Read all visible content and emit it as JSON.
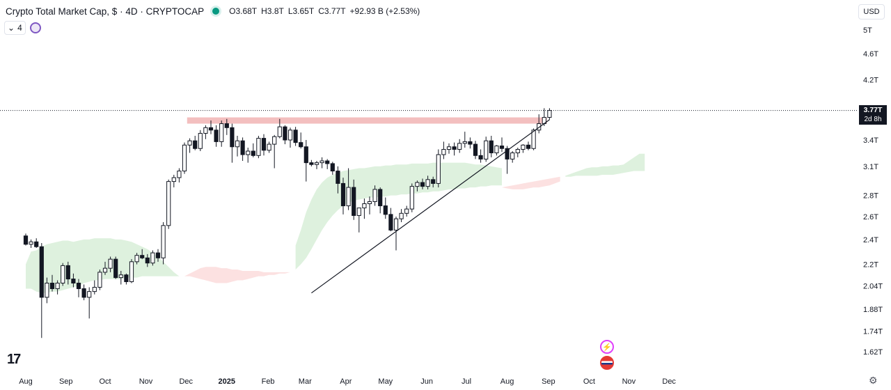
{
  "header": {
    "title": "Crypto Total Market Cap, $ · 4D · CRYPTOCAP",
    "open": "O3.68T",
    "high": "H3.8T",
    "low": "L3.65T",
    "close": "C3.77T",
    "change": "+92.93 B (+2.53%)"
  },
  "indicator_count": "4",
  "currency": "USD",
  "price_tag": {
    "value": "3.77T",
    "countdown": "2d 8h"
  },
  "tv_logo": "17",
  "colors": {
    "up": "#131722",
    "down": "#131722",
    "resistance": "#f2b8b8",
    "cloud_bull": "#d8eed8",
    "cloud_bear": "#fbdcdc",
    "trendline": "#131722"
  },
  "chart_data": {
    "type": "candlestick",
    "title": "Crypto Total Market Cap, $ · 4D · CRYPTOCAP",
    "yscale": "log",
    "ylim": [
      1.55,
      5.3
    ],
    "y_ticks": [
      {
        "v": 5.0,
        "label": "5T"
      },
      {
        "v": 4.6,
        "label": "4.6T"
      },
      {
        "v": 4.2,
        "label": "4.2T"
      },
      {
        "v": 3.4,
        "label": "3.4T"
      },
      {
        "v": 3.1,
        "label": "3.1T"
      },
      {
        "v": 2.8,
        "label": "2.8T"
      },
      {
        "v": 2.6,
        "label": "2.6T"
      },
      {
        "v": 2.4,
        "label": "2.4T"
      },
      {
        "v": 2.2,
        "label": "2.2T"
      },
      {
        "v": 2.04,
        "label": "2.04T"
      },
      {
        "v": 1.88,
        "label": "1.88T"
      },
      {
        "v": 1.74,
        "label": "1.74T"
      },
      {
        "v": 1.62,
        "label": "1.62T"
      }
    ],
    "x_ticks": [
      "Aug",
      "Sep",
      "Oct",
      "Nov",
      "Dec",
      "2025",
      "Feb",
      "Mar",
      "Apr",
      "May",
      "Jun",
      "Jul",
      "Aug",
      "Sep",
      "Oct",
      "Nov",
      "Dec"
    ],
    "x_tick_index": [
      0,
      7.6,
      15,
      22.7,
      30.3,
      38,
      45.8,
      52.8,
      60.5,
      68,
      75.8,
      83.3,
      91,
      98.8,
      106.5,
      114,
      121.6
    ],
    "resistance_zone": {
      "i0": 30.5,
      "i1": 98.5,
      "low": 3.6,
      "high": 3.68
    },
    "trendline": {
      "i0": 54,
      "v0": 1.99,
      "i1": 99,
      "v1": 3.65
    },
    "cloud_bull": [
      {
        "i0": 0,
        "i1": 29,
        "upper": [
          2.2,
          2.3,
          2.31,
          2.34,
          2.36,
          2.37,
          2.38,
          2.39,
          2.39,
          2.38,
          2.39,
          2.4,
          2.4,
          2.41,
          2.41,
          2.41,
          2.41,
          2.4,
          2.4,
          2.39,
          2.38,
          2.36,
          2.34,
          2.32,
          2.29,
          2.26,
          2.22,
          2.18,
          2.14,
          2.11
        ],
        "lower": [
          2.02,
          2.02,
          2.0,
          1.99,
          1.99,
          2.0,
          2.0,
          2.01,
          2.02,
          2.03,
          2.04,
          2.06,
          2.07,
          2.08,
          2.08,
          2.09,
          2.09,
          2.09,
          2.09,
          2.1,
          2.1,
          2.1,
          2.11,
          2.11,
          2.11,
          2.11,
          2.11,
          2.11,
          2.11,
          2.11
        ]
      },
      {
        "i0": 51,
        "i1": 90,
        "upper": [
          2.35,
          2.48,
          2.64,
          2.76,
          2.86,
          2.93,
          2.98,
          3.01,
          3.03,
          3.05,
          3.06,
          3.07,
          3.08,
          3.08,
          3.09,
          3.1,
          3.1,
          3.11,
          3.11,
          3.12,
          3.12,
          3.12,
          3.13,
          3.13,
          3.13,
          3.13,
          3.14,
          3.14,
          3.14,
          3.14,
          3.14,
          3.14,
          3.14,
          3.13,
          3.12,
          3.12,
          3.11,
          3.1,
          3.09,
          3.08
        ],
        "lower": [
          2.16,
          2.2,
          2.25,
          2.32,
          2.4,
          2.48,
          2.55,
          2.61,
          2.66,
          2.7,
          2.73,
          2.75,
          2.76,
          2.77,
          2.78,
          2.78,
          2.79,
          2.79,
          2.8,
          2.8,
          2.81,
          2.81,
          2.82,
          2.82,
          2.83,
          2.83,
          2.84,
          2.84,
          2.85,
          2.86,
          2.86,
          2.87,
          2.87,
          2.88,
          2.88,
          2.89,
          2.89,
          2.9,
          2.9,
          2.9
        ]
      },
      {
        "i0": 102,
        "i1": 117,
        "upper": [
          3.0,
          3.02,
          3.04,
          3.06,
          3.08,
          3.09,
          3.09,
          3.1,
          3.1,
          3.11,
          3.11,
          3.12,
          3.16,
          3.2,
          3.24,
          3.24
        ],
        "lower": [
          2.99,
          2.99,
          3.0,
          3.0,
          3.0,
          3.0,
          3.0,
          3.01,
          3.01,
          3.01,
          3.02,
          3.03,
          3.04,
          3.05,
          3.05,
          3.05
        ]
      }
    ],
    "cloud_bear": [
      {
        "i0": 30,
        "i1": 50,
        "upper": [
          2.11,
          2.13,
          2.15,
          2.17,
          2.18,
          2.18,
          2.18,
          2.17,
          2.17,
          2.16,
          2.16,
          2.15,
          2.15,
          2.15,
          2.15,
          2.14,
          2.14,
          2.14,
          2.14,
          2.14,
          2.14
        ],
        "lower": [
          2.11,
          2.11,
          2.1,
          2.09,
          2.08,
          2.07,
          2.06,
          2.06,
          2.06,
          2.07,
          2.08,
          2.08,
          2.09,
          2.1,
          2.11,
          2.11,
          2.12,
          2.12,
          2.13,
          2.13,
          2.14
        ]
      },
      {
        "i0": 90,
        "i1": 101,
        "upper": [
          2.88,
          2.89,
          2.9,
          2.91,
          2.92,
          2.93,
          2.94,
          2.95,
          2.96,
          2.97,
          2.98,
          2.99
        ],
        "lower": [
          2.88,
          2.87,
          2.86,
          2.86,
          2.86,
          2.87,
          2.88,
          2.88,
          2.89,
          2.9,
          2.92,
          2.94
        ]
      }
    ],
    "candles": [
      [
        2.43,
        2.45,
        2.35,
        2.36
      ],
      [
        2.36,
        2.4,
        2.33,
        2.38
      ],
      [
        2.38,
        2.41,
        2.33,
        2.34
      ],
      [
        2.34,
        2.37,
        1.7,
        1.96
      ],
      [
        1.96,
        2.1,
        1.92,
        2.06
      ],
      [
        2.06,
        2.12,
        2.0,
        2.02
      ],
      [
        2.02,
        2.08,
        1.98,
        2.06
      ],
      [
        2.06,
        2.21,
        2.04,
        2.19
      ],
      [
        2.19,
        2.22,
        2.05,
        2.09
      ],
      [
        2.09,
        2.13,
        2.03,
        2.06
      ],
      [
        2.06,
        2.09,
        1.96,
        2.02
      ],
      [
        2.02,
        2.05,
        1.94,
        1.96
      ],
      [
        1.96,
        2.03,
        1.82,
        2.0
      ],
      [
        2.0,
        2.08,
        1.98,
        2.03
      ],
      [
        2.03,
        2.16,
        2.01,
        2.14
      ],
      [
        2.14,
        2.22,
        2.12,
        2.17
      ],
      [
        2.17,
        2.26,
        2.14,
        2.24
      ],
      [
        2.24,
        2.26,
        2.09,
        2.1
      ],
      [
        2.1,
        2.15,
        2.05,
        2.12
      ],
      [
        2.12,
        2.13,
        2.05,
        2.07
      ],
      [
        2.07,
        2.24,
        2.06,
        2.22
      ],
      [
        2.22,
        2.29,
        2.2,
        2.27
      ],
      [
        2.27,
        2.32,
        2.24,
        2.25
      ],
      [
        2.25,
        2.28,
        2.18,
        2.21
      ],
      [
        2.21,
        2.31,
        2.19,
        2.29
      ],
      [
        2.29,
        2.32,
        2.22,
        2.25
      ],
      [
        2.25,
        2.55,
        2.2,
        2.52
      ],
      [
        2.52,
        2.96,
        2.49,
        2.94
      ],
      [
        2.94,
        3.01,
        2.88,
        2.98
      ],
      [
        2.98,
        3.08,
        2.93,
        3.05
      ],
      [
        3.05,
        3.37,
        3.02,
        3.34
      ],
      [
        3.34,
        3.42,
        3.25,
        3.39
      ],
      [
        3.39,
        3.45,
        3.28,
        3.3
      ],
      [
        3.3,
        3.52,
        3.27,
        3.48
      ],
      [
        3.48,
        3.58,
        3.41,
        3.55
      ],
      [
        3.55,
        3.64,
        3.47,
        3.52
      ],
      [
        3.52,
        3.58,
        3.32,
        3.38
      ],
      [
        3.38,
        3.64,
        3.32,
        3.6
      ],
      [
        3.6,
        3.66,
        3.46,
        3.55
      ],
      [
        3.55,
        3.6,
        3.14,
        3.32
      ],
      [
        3.32,
        3.45,
        3.21,
        3.39
      ],
      [
        3.39,
        3.43,
        3.16,
        3.23
      ],
      [
        3.23,
        3.31,
        3.14,
        3.27
      ],
      [
        3.27,
        3.36,
        3.2,
        3.22
      ],
      [
        3.22,
        3.45,
        3.19,
        3.42
      ],
      [
        3.42,
        3.47,
        3.22,
        3.28
      ],
      [
        3.28,
        3.38,
        3.25,
        3.35
      ],
      [
        3.35,
        3.46,
        3.08,
        3.44
      ],
      [
        3.44,
        3.66,
        3.42,
        3.56
      ],
      [
        3.56,
        3.58,
        3.35,
        3.4
      ],
      [
        3.4,
        3.55,
        3.31,
        3.52
      ],
      [
        3.52,
        3.56,
        3.33,
        3.37
      ],
      [
        3.37,
        3.49,
        3.3,
        3.32
      ],
      [
        3.32,
        3.4,
        2.94,
        3.14
      ],
      [
        3.14,
        3.17,
        3.1,
        3.12
      ],
      [
        3.12,
        3.16,
        3.07,
        3.14
      ],
      [
        3.14,
        3.2,
        3.08,
        3.16
      ],
      [
        3.16,
        3.18,
        3.07,
        3.13
      ],
      [
        3.13,
        3.15,
        3.01,
        3.05
      ],
      [
        3.05,
        3.1,
        2.82,
        2.92
      ],
      [
        2.92,
        2.98,
        2.62,
        2.7
      ],
      [
        2.7,
        3.08,
        2.66,
        2.88
      ],
      [
        2.88,
        2.96,
        2.57,
        2.61
      ],
      [
        2.61,
        2.66,
        2.46,
        2.68
      ],
      [
        2.68,
        2.77,
        2.58,
        2.72
      ],
      [
        2.72,
        2.79,
        2.62,
        2.74
      ],
      [
        2.74,
        2.9,
        2.7,
        2.86
      ],
      [
        2.86,
        2.88,
        2.63,
        2.7
      ],
      [
        2.7,
        2.78,
        2.58,
        2.62
      ],
      [
        2.62,
        2.68,
        2.47,
        2.48
      ],
      [
        2.48,
        2.6,
        2.31,
        2.58
      ],
      [
        2.58,
        2.67,
        2.55,
        2.63
      ],
      [
        2.63,
        2.7,
        2.6,
        2.67
      ],
      [
        2.67,
        2.92,
        2.64,
        2.89
      ],
      [
        2.89,
        2.95,
        2.84,
        2.93
      ],
      [
        2.93,
        2.97,
        2.86,
        2.89
      ],
      [
        2.89,
        3.0,
        2.86,
        2.96
      ],
      [
        2.96,
        2.99,
        2.88,
        2.92
      ],
      [
        2.92,
        3.29,
        2.88,
        3.23
      ],
      [
        3.23,
        3.38,
        3.18,
        3.29
      ],
      [
        3.29,
        3.36,
        3.24,
        3.32
      ],
      [
        3.32,
        3.37,
        3.22,
        3.29
      ],
      [
        3.29,
        3.41,
        3.25,
        3.36
      ],
      [
        3.36,
        3.5,
        3.31,
        3.38
      ],
      [
        3.38,
        3.43,
        3.3,
        3.35
      ],
      [
        3.35,
        3.39,
        3.18,
        3.22
      ],
      [
        3.22,
        3.29,
        3.14,
        3.18
      ],
      [
        3.18,
        3.44,
        3.15,
        3.39
      ],
      [
        3.39,
        3.45,
        3.2,
        3.25
      ],
      [
        3.25,
        3.34,
        3.22,
        3.33
      ],
      [
        3.33,
        3.43,
        3.26,
        3.3
      ],
      [
        3.3,
        3.33,
        3.02,
        3.18
      ],
      [
        3.18,
        3.27,
        3.14,
        3.25
      ],
      [
        3.25,
        3.31,
        3.2,
        3.29
      ],
      [
        3.29,
        3.35,
        3.25,
        3.34
      ],
      [
        3.34,
        3.38,
        3.28,
        3.3
      ],
      [
        3.3,
        3.54,
        3.28,
        3.52
      ],
      [
        3.52,
        3.72,
        3.48,
        3.6
      ],
      [
        3.6,
        3.8,
        3.57,
        3.68
      ],
      [
        3.68,
        3.8,
        3.65,
        3.77
      ]
    ]
  }
}
